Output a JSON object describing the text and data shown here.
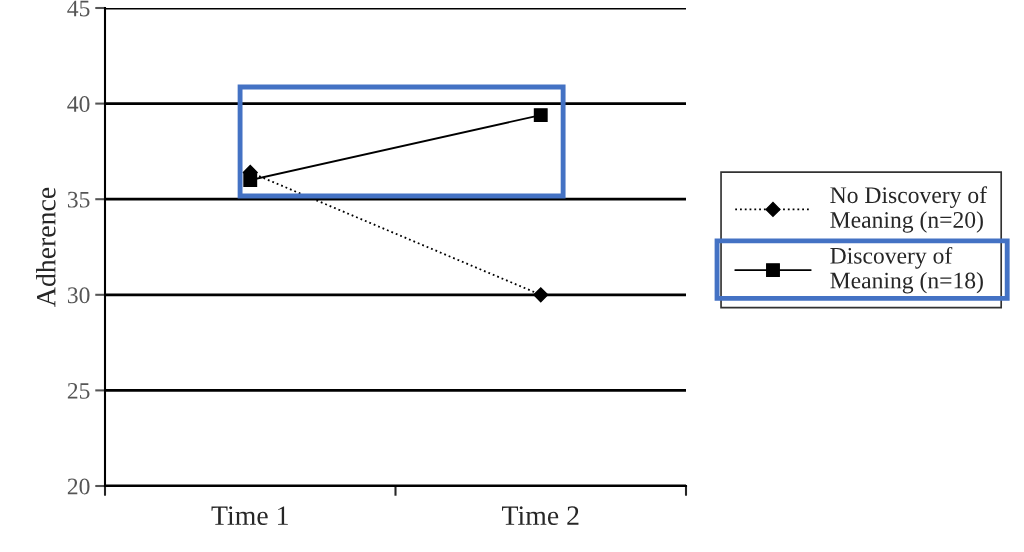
{
  "chart_data": {
    "type": "line",
    "ylabel": "Adherence",
    "categories": [
      "Time 1",
      "Time 2"
    ],
    "series": [
      {
        "name": "No Discovery of\nMeaning (n=20)",
        "color": "#000000",
        "values": [
          36.4,
          30.0
        ],
        "marker": "diamond",
        "line_style": "dotted"
      },
      {
        "name": "Discovery of\nMeaning (n=18)",
        "color": "#000000",
        "values": [
          36.0,
          39.4
        ],
        "marker": "square",
        "line_style": "solid"
      }
    ],
    "ylim": [
      20,
      45
    ],
    "yticks": [
      20,
      25,
      30,
      35,
      40,
      45
    ],
    "grid": "y",
    "legend": "right"
  }
}
